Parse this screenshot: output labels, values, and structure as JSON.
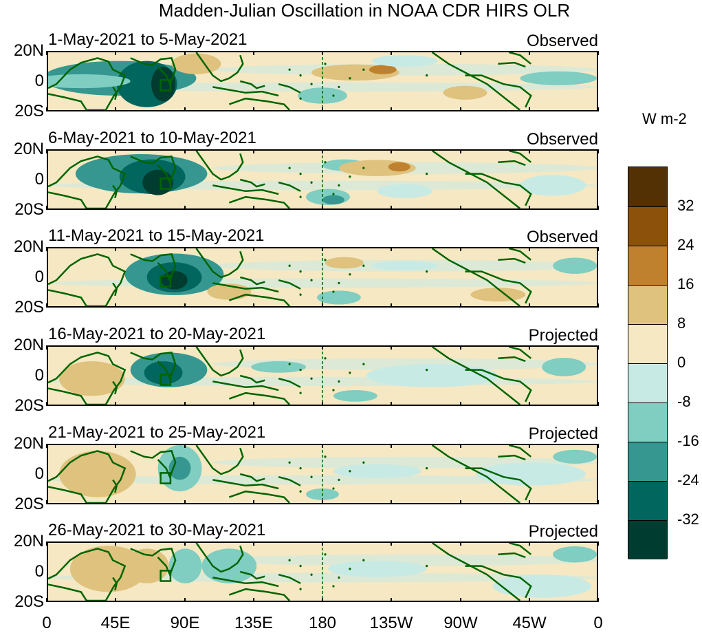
{
  "title": "Madden-Julian Oscillation in NOAA CDR HIRS OLR",
  "panels": [
    {
      "period": "1-May-2021 to 5-May-2021",
      "status": "Observed"
    },
    {
      "period": "6-May-2021 to 10-May-2021",
      "status": "Observed"
    },
    {
      "period": "11-May-2021 to 15-May-2021",
      "status": "Observed"
    },
    {
      "period": "16-May-2021 to 20-May-2021",
      "status": "Projected"
    },
    {
      "period": "21-May-2021 to 25-May-2021",
      "status": "Projected"
    },
    {
      "period": "26-May-2021 to 30-May-2021",
      "status": "Projected"
    }
  ],
  "lat_labels": [
    "20N",
    "0",
    "20S"
  ],
  "lon_labels": [
    "0",
    "45E",
    "90E",
    "135E",
    "180",
    "135W",
    "90W",
    "45W",
    "0"
  ],
  "colorbar": {
    "title": "W m-2",
    "labels": [
      "32",
      "24",
      "16",
      "8",
      "0",
      "-8",
      "-16",
      "-24",
      "-32"
    ],
    "colors": [
      "#543005",
      "#8c510a",
      "#bf812d",
      "#dfc27d",
      "#f6e8c3",
      "#c7eae5",
      "#80cdc1",
      "#35978f",
      "#01665e",
      "#003c30"
    ]
  },
  "map_colors": {
    "coast": "#006400",
    "dateline": "#006400"
  }
}
